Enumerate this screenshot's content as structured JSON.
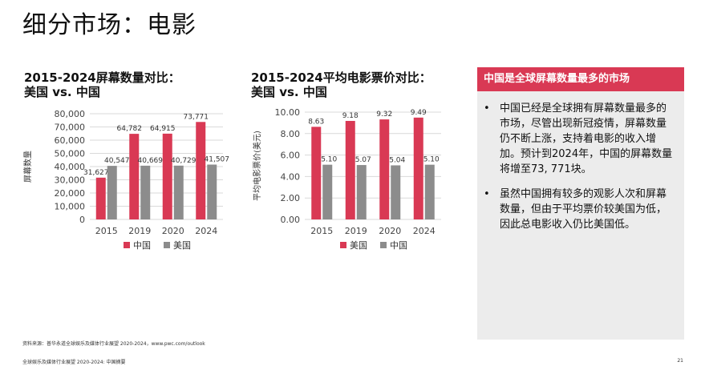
{
  "page": {
    "title": "细分市场：电影",
    "source": "资料来源：普华永道全球娱乐及媒体行业展望 2020-2024，www.pwc.com/outlook",
    "footer": "全球娱乐及媒体行业展望 2020-2024: 中国摘要",
    "page_number": "21"
  },
  "panel": {
    "header": "中国是全球屏幕数量最多的市场",
    "bullets": [
      "中国已经是全球拥有屏幕数量最多的市场，尽管出现新冠疫情，屏幕数量仍不断上涨，支持着电影的收入增加。预计到2024年，中国的屏幕数量将增至73, 771块。",
      "虽然中国拥有较多的观影人次和屏幕数量，但由于平均票价较美国为低，因此总电影收入仍比美国低。"
    ]
  },
  "colors": {
    "red": "#d93954",
    "gray": "#8c8c8c",
    "panel_bg": "#ececec"
  },
  "chart_data": [
    {
      "type": "bar",
      "title_line1": "2015-2024屏幕数量对比：",
      "title_line2": "美国 vs. 中国",
      "ylabel": "屏幕数量",
      "xlabel": "",
      "categories": [
        "2015",
        "2019",
        "2020",
        "2024"
      ],
      "ylim": [
        0,
        80000
      ],
      "yticks": [
        0,
        10000,
        20000,
        30000,
        40000,
        50000,
        60000,
        70000,
        80000
      ],
      "ytick_labels": [
        "0",
        "10,000",
        "20,000",
        "30,000",
        "40,000",
        "50,000",
        "60,000",
        "70,000",
        "80,000"
      ],
      "grid": true,
      "legend_position": "bottom",
      "series": [
        {
          "name": "中国",
          "color": "#d93954",
          "values": [
            31627,
            64782,
            64915,
            73771
          ],
          "labels": [
            "31,627",
            "64,782",
            "64,915",
            "73,771"
          ]
        },
        {
          "name": "美国",
          "color": "#8c8c8c",
          "values": [
            40547,
            40669,
            40729,
            41507
          ],
          "labels": [
            "40,547",
            "40,669",
            "40,729",
            "41,507"
          ]
        }
      ]
    },
    {
      "type": "bar",
      "title_line1": "2015-2024平均电影票价对比：",
      "title_line2": "美国 vs. 中国",
      "ylabel": "平均电影票价(美元)",
      "xlabel": "",
      "categories": [
        "2015",
        "2019",
        "2020",
        "2024"
      ],
      "ylim": [
        0,
        10
      ],
      "yticks": [
        0,
        2,
        4,
        6,
        8,
        10
      ],
      "ytick_labels": [
        "0.00",
        "2.00",
        "4.00",
        "6.00",
        "8.00",
        "10.00"
      ],
      "grid": true,
      "legend_position": "bottom",
      "series": [
        {
          "name": "美国",
          "color": "#d93954",
          "values": [
            8.63,
            9.18,
            9.32,
            9.49
          ],
          "labels": [
            "8.63",
            "9.18",
            "9.32",
            "9.49"
          ]
        },
        {
          "name": "中国",
          "color": "#8c8c8c",
          "values": [
            5.1,
            5.07,
            5.04,
            5.1
          ],
          "labels": [
            "5.10",
            "5.07",
            "5.04",
            "5.10"
          ]
        }
      ]
    }
  ]
}
